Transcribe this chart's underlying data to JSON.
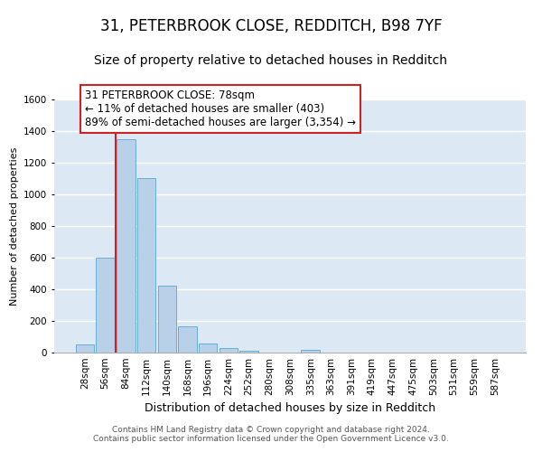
{
  "title": "31, PETERBROOK CLOSE, REDDITCH, B98 7YF",
  "subtitle": "Size of property relative to detached houses in Redditch",
  "xlabel": "Distribution of detached houses by size in Redditch",
  "ylabel": "Number of detached properties",
  "categories": [
    "28sqm",
    "56sqm",
    "84sqm",
    "112sqm",
    "140sqm",
    "168sqm",
    "196sqm",
    "224sqm",
    "252sqm",
    "280sqm",
    "308sqm",
    "335sqm",
    "363sqm",
    "391sqm",
    "419sqm",
    "447sqm",
    "475sqm",
    "503sqm",
    "531sqm",
    "559sqm",
    "587sqm"
  ],
  "values": [
    50,
    600,
    1350,
    1100,
    425,
    165,
    60,
    30,
    10,
    0,
    0,
    20,
    0,
    0,
    0,
    0,
    0,
    0,
    0,
    0,
    0
  ],
  "bar_color": "#b8d0e8",
  "bar_edge_color": "#6aaed6",
  "marker_line_color": "#cc2222",
  "annotation_text": "31 PETERBROOK CLOSE: 78sqm\n← 11% of detached houses are smaller (403)\n89% of semi-detached houses are larger (3,354) →",
  "annotation_box_color": "#ffffff",
  "annotation_box_edge_color": "#cc2222",
  "ylim": [
    0,
    1600
  ],
  "yticks": [
    0,
    200,
    400,
    600,
    800,
    1000,
    1200,
    1400,
    1600
  ],
  "grid_color": "#ffffff",
  "background_color": "#dce9f5",
  "footer_text": "Contains HM Land Registry data © Crown copyright and database right 2024.\nContains public sector information licensed under the Open Government Licence v3.0.",
  "title_fontsize": 12,
  "subtitle_fontsize": 10,
  "xlabel_fontsize": 9,
  "ylabel_fontsize": 8,
  "tick_fontsize": 7.5,
  "annotation_fontsize": 8.5,
  "footer_fontsize": 6.5
}
